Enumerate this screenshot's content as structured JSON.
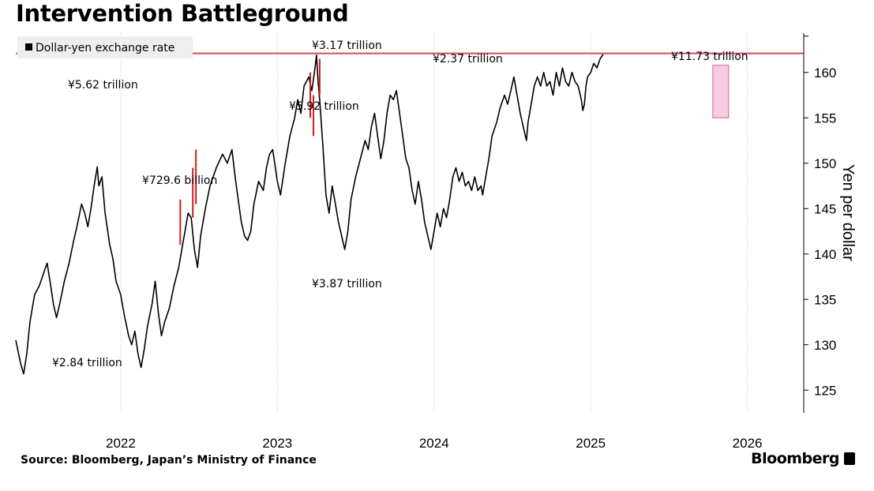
{
  "title": "Intervention Battleground",
  "source": "Source: Bloomberg, Japan’s Ministry of Finance",
  "brand": "Bloomberg",
  "colors": {
    "line": "#000000",
    "intervention": "#d11d1d",
    "reference_line": "#d64a5e",
    "highlight_fill": "#f7c3dc",
    "highlight_stroke": "#e58ab8",
    "grid": "#c8c8c8",
    "legend_bg": "#eeeeee"
  },
  "chart_data": {
    "type": "line",
    "legend": [
      {
        "label": "Dollar-yen exchange rate",
        "marker": "square",
        "color": "#000000"
      }
    ],
    "legend_position": "top-left",
    "ylabel": "Yen per dollar",
    "y_axis_side": "right",
    "ylim": [
      122.5,
      164.5
    ],
    "yticks": [
      125,
      130,
      135,
      140,
      145,
      150,
      155,
      160
    ],
    "xlim": [
      2021.33,
      2026.36
    ],
    "xticks": [
      {
        "label": "2022",
        "value": 2022.0
      },
      {
        "label": "2023",
        "value": 2023.0
      },
      {
        "label": "2024",
        "value": 2024.0
      },
      {
        "label": "2025",
        "value": 2025.0
      },
      {
        "label": "2026",
        "value": 2026.0
      }
    ],
    "grid": "vertical at years",
    "series": [
      {
        "name": "Dollar-yen exchange rate",
        "points": [
          [
            2021.33,
            130.5
          ],
          [
            2021.36,
            128.0
          ],
          [
            2021.38,
            126.8
          ],
          [
            2021.4,
            129.0
          ],
          [
            2021.42,
            132.5
          ],
          [
            2021.45,
            135.5
          ],
          [
            2021.48,
            136.5
          ],
          [
            2021.51,
            138.0
          ],
          [
            2021.53,
            139.0
          ],
          [
            2021.55,
            136.8
          ],
          [
            2021.57,
            134.5
          ],
          [
            2021.59,
            133.0
          ],
          [
            2021.61,
            134.5
          ],
          [
            2021.64,
            137.0
          ],
          [
            2021.67,
            139.0
          ],
          [
            2021.7,
            141.5
          ],
          [
            2021.72,
            143.0
          ],
          [
            2021.75,
            145.5
          ],
          [
            2021.77,
            144.5
          ],
          [
            2021.79,
            143.0
          ],
          [
            2021.81,
            145.0
          ],
          [
            2021.83,
            147.5
          ],
          [
            2021.85,
            149.6
          ],
          [
            2021.86,
            147.5
          ],
          [
            2021.88,
            148.5
          ],
          [
            2021.9,
            144.5
          ],
          [
            2021.93,
            141.0
          ],
          [
            2021.95,
            139.5
          ],
          [
            2021.97,
            137.0
          ],
          [
            2022.0,
            135.5
          ],
          [
            2022.02,
            133.5
          ],
          [
            2022.05,
            131.0
          ],
          [
            2022.07,
            130.0
          ],
          [
            2022.09,
            131.5
          ],
          [
            2022.11,
            129.0
          ],
          [
            2022.13,
            127.5
          ],
          [
            2022.15,
            129.5
          ],
          [
            2022.17,
            132.0
          ],
          [
            2022.2,
            134.5
          ],
          [
            2022.22,
            137.0
          ],
          [
            2022.24,
            133.5
          ],
          [
            2022.26,
            131.0
          ],
          [
            2022.28,
            132.5
          ],
          [
            2022.31,
            134.0
          ],
          [
            2022.34,
            136.5
          ],
          [
            2022.37,
            138.5
          ],
          [
            2022.4,
            141.5
          ],
          [
            2022.43,
            144.5
          ],
          [
            2022.45,
            144.0
          ],
          [
            2022.47,
            140.5
          ],
          [
            2022.49,
            138.5
          ],
          [
            2022.51,
            142.0
          ],
          [
            2022.54,
            145.0
          ],
          [
            2022.57,
            147.5
          ],
          [
            2022.61,
            149.5
          ],
          [
            2022.65,
            151.0
          ],
          [
            2022.68,
            150.0
          ],
          [
            2022.71,
            151.5
          ],
          [
            2022.73,
            148.5
          ],
          [
            2022.75,
            146.0
          ],
          [
            2022.77,
            143.5
          ],
          [
            2022.79,
            142.0
          ],
          [
            2022.81,
            141.5
          ],
          [
            2022.83,
            142.5
          ],
          [
            2022.85,
            145.5
          ],
          [
            2022.88,
            148.0
          ],
          [
            2022.91,
            147.0
          ],
          [
            2022.93,
            149.5
          ],
          [
            2022.95,
            151.0
          ],
          [
            2022.97,
            151.5
          ],
          [
            2023.0,
            148.0
          ],
          [
            2023.02,
            146.5
          ],
          [
            2023.05,
            150.0
          ],
          [
            2023.08,
            153.0
          ],
          [
            2023.11,
            155.0
          ],
          [
            2023.13,
            157.0
          ],
          [
            2023.15,
            155.5
          ],
          [
            2023.17,
            158.5
          ],
          [
            2023.2,
            159.5
          ],
          [
            2023.22,
            158.0
          ],
          [
            2023.24,
            160.5
          ],
          [
            2023.25,
            161.9
          ],
          [
            2023.26,
            159.0
          ],
          [
            2023.27,
            157.0
          ],
          [
            2023.29,
            152.0
          ],
          [
            2023.31,
            146.5
          ],
          [
            2023.33,
            144.5
          ],
          [
            2023.35,
            147.5
          ],
          [
            2023.37,
            145.5
          ],
          [
            2023.39,
            143.5
          ],
          [
            2023.41,
            142.0
          ],
          [
            2023.43,
            140.5
          ],
          [
            2023.45,
            142.5
          ],
          [
            2023.47,
            146.0
          ],
          [
            2023.5,
            148.5
          ],
          [
            2023.53,
            150.5
          ],
          [
            2023.56,
            152.5
          ],
          [
            2023.58,
            151.5
          ],
          [
            2023.6,
            154.0
          ],
          [
            2023.62,
            155.5
          ],
          [
            2023.64,
            153.0
          ],
          [
            2023.66,
            150.5
          ],
          [
            2023.68,
            152.5
          ],
          [
            2023.7,
            155.5
          ],
          [
            2023.72,
            157.5
          ],
          [
            2023.74,
            157.0
          ],
          [
            2023.76,
            158.0
          ],
          [
            2023.78,
            155.5
          ],
          [
            2023.8,
            153.0
          ],
          [
            2023.82,
            150.5
          ],
          [
            2023.84,
            149.5
          ],
          [
            2023.86,
            147.0
          ],
          [
            2023.88,
            145.5
          ],
          [
            2023.9,
            148.0
          ],
          [
            2023.92,
            146.0
          ],
          [
            2023.94,
            143.5
          ],
          [
            2023.96,
            142.0
          ],
          [
            2023.98,
            140.5
          ],
          [
            2024.0,
            142.5
          ],
          [
            2024.02,
            144.5
          ],
          [
            2024.04,
            143.0
          ],
          [
            2024.06,
            145.0
          ],
          [
            2024.08,
            144.0
          ],
          [
            2024.1,
            146.0
          ],
          [
            2024.12,
            148.5
          ],
          [
            2024.14,
            149.5
          ],
          [
            2024.16,
            148.0
          ],
          [
            2024.18,
            149.0
          ],
          [
            2024.2,
            147.5
          ],
          [
            2024.22,
            148.0
          ],
          [
            2024.24,
            147.0
          ],
          [
            2024.26,
            148.5
          ],
          [
            2024.28,
            147.0
          ],
          [
            2024.3,
            147.5
          ],
          [
            2024.31,
            146.5
          ],
          [
            2024.33,
            148.5
          ],
          [
            2024.35,
            150.5
          ],
          [
            2024.37,
            153.0
          ],
          [
            2024.4,
            154.5
          ],
          [
            2024.42,
            156.0
          ],
          [
            2024.45,
            157.5
          ],
          [
            2024.47,
            156.5
          ],
          [
            2024.49,
            158.0
          ],
          [
            2024.51,
            159.5
          ],
          [
            2024.53,
            157.5
          ],
          [
            2024.55,
            155.5
          ],
          [
            2024.57,
            154.0
          ],
          [
            2024.59,
            152.5
          ],
          [
            2024.6,
            154.5
          ],
          [
            2024.62,
            156.5
          ],
          [
            2024.64,
            158.5
          ],
          [
            2024.66,
            159.5
          ],
          [
            2024.68,
            158.5
          ],
          [
            2024.7,
            160.0
          ],
          [
            2024.72,
            158.5
          ],
          [
            2024.74,
            159.0
          ],
          [
            2024.76,
            157.5
          ],
          [
            2024.78,
            160.0
          ],
          [
            2024.8,
            158.5
          ],
          [
            2024.82,
            160.5
          ],
          [
            2024.84,
            159.0
          ],
          [
            2024.86,
            158.5
          ],
          [
            2024.88,
            160.0
          ],
          [
            2024.9,
            159.0
          ],
          [
            2024.92,
            158.5
          ],
          [
            2024.94,
            157.0
          ],
          [
            2024.95,
            155.8
          ],
          [
            2024.96,
            156.5
          ],
          [
            2024.97,
            158.5
          ],
          [
            2024.98,
            159.5
          ],
          [
            2025.0,
            160.0
          ],
          [
            2025.02,
            161.0
          ],
          [
            2025.04,
            160.5
          ],
          [
            2025.06,
            161.5
          ],
          [
            2025.08,
            162.0
          ]
        ]
      }
    ],
    "interventions": [
      {
        "x": 2022.38,
        "y_low": 141.0,
        "y_high": 146.0
      },
      {
        "x": 2022.46,
        "y_low": 144.0,
        "y_high": 149.5
      },
      {
        "x": 2022.48,
        "y_low": 145.5,
        "y_high": 151.5
      },
      {
        "x": 2023.21,
        "y_low": 155.0,
        "y_high": 160.0
      },
      {
        "x": 2023.23,
        "y_low": 153.0,
        "y_high": 157.5
      },
      {
        "x": 2023.27,
        "y_low": 157.5,
        "y_high": 161.5
      }
    ],
    "reference_line": {
      "y": 162.1
    },
    "highlight_box": {
      "x0": 2025.78,
      "x1": 2025.88,
      "y0": 155.0,
      "y1": 160.8
    },
    "annotations": [
      {
        "text": "¥5.62 trillion"
      },
      {
        "text": "¥2.84 trillion"
      },
      {
        "text": "¥729.6 billion"
      },
      {
        "text": "¥3.17 trillion"
      },
      {
        "text": "¥5.92 trillion"
      },
      {
        "text": "¥3.87 trillion"
      },
      {
        "text": "¥2.37 trillion"
      },
      {
        "text": "¥11.73 trillion"
      }
    ]
  }
}
